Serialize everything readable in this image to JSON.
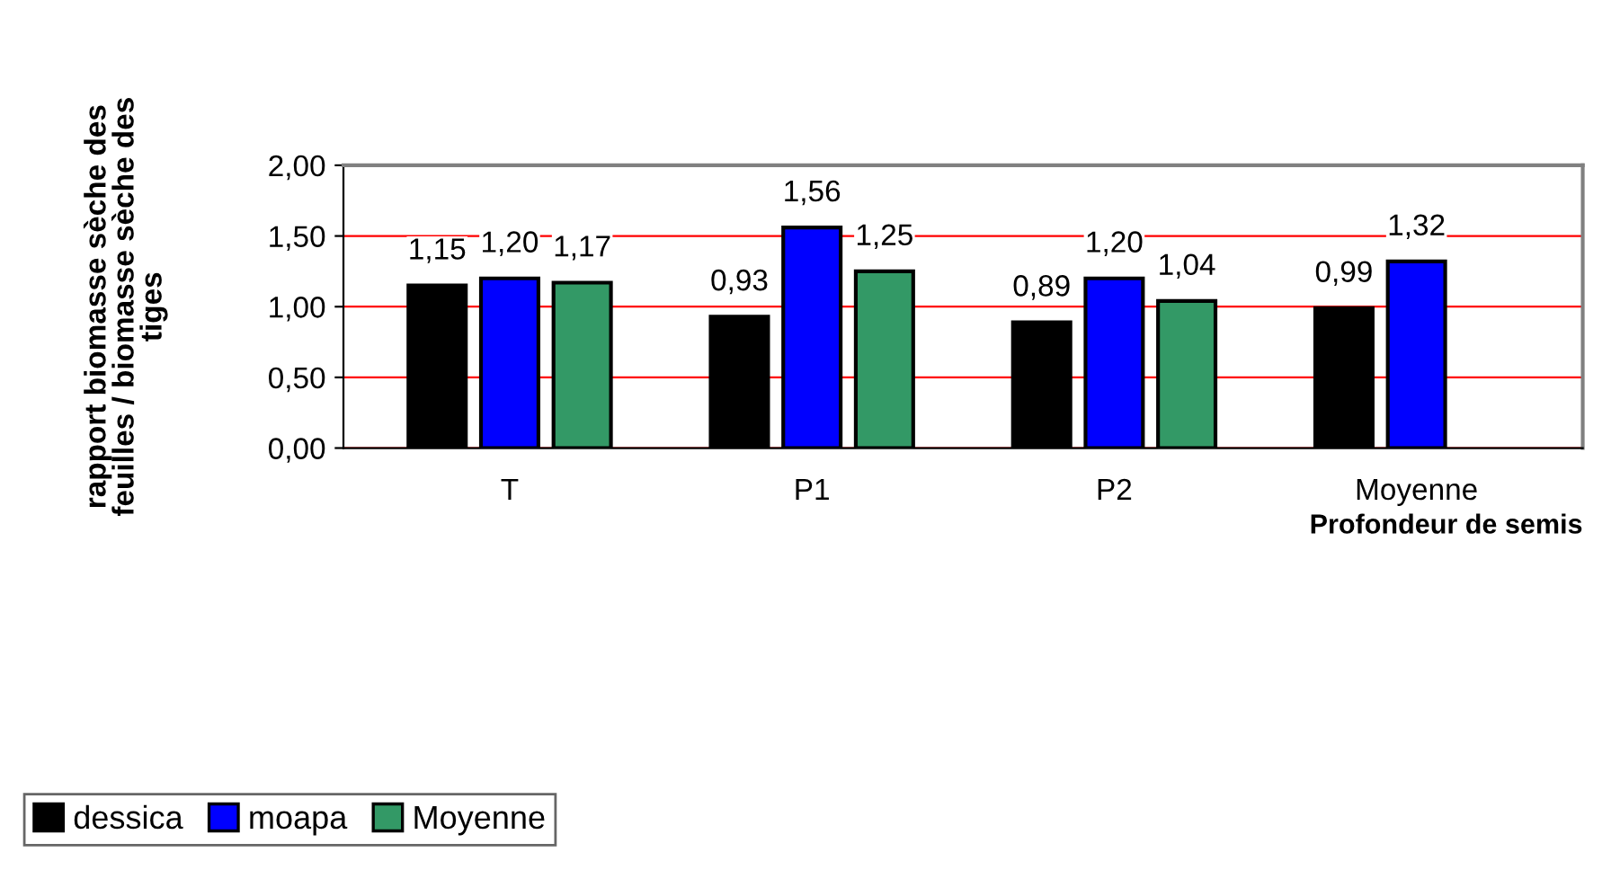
{
  "chart_data": {
    "type": "bar",
    "xlabel": "Profondeur de semis",
    "ylabel": "rapport biomasse sèche des\nfeuilles / biomasse sèche des\ntiges",
    "categories": [
      "T",
      "P1",
      "P2",
      "Moyenne"
    ],
    "series": [
      {
        "name": "dessica",
        "color": "#000000",
        "values": [
          1.15,
          0.93,
          0.89,
          0.99
        ],
        "value_labels": [
          "1,15",
          "0,93",
          "0,89",
          "0,99"
        ]
      },
      {
        "name": "moapa",
        "color": "#0000ff",
        "values": [
          1.2,
          1.56,
          1.2,
          1.32
        ],
        "value_labels": [
          "1,20",
          "1,56",
          "1,20",
          "1,32"
        ]
      },
      {
        "name": "Moyenne",
        "color": "#339966",
        "values": [
          1.17,
          1.25,
          1.04,
          null
        ],
        "value_labels": [
          "1,17",
          "1,25",
          "1,04",
          null
        ]
      }
    ],
    "ylim": [
      0,
      2
    ],
    "yticks": [
      {
        "value": 0,
        "label": "0,00"
      },
      {
        "value": 0.5,
        "label": "0,50"
      },
      {
        "value": 1,
        "label": "1,00"
      },
      {
        "value": 1.5,
        "label": "1,50"
      },
      {
        "value": 2,
        "label": "2,00"
      }
    ],
    "grid": "y",
    "legend": "bottom left"
  }
}
